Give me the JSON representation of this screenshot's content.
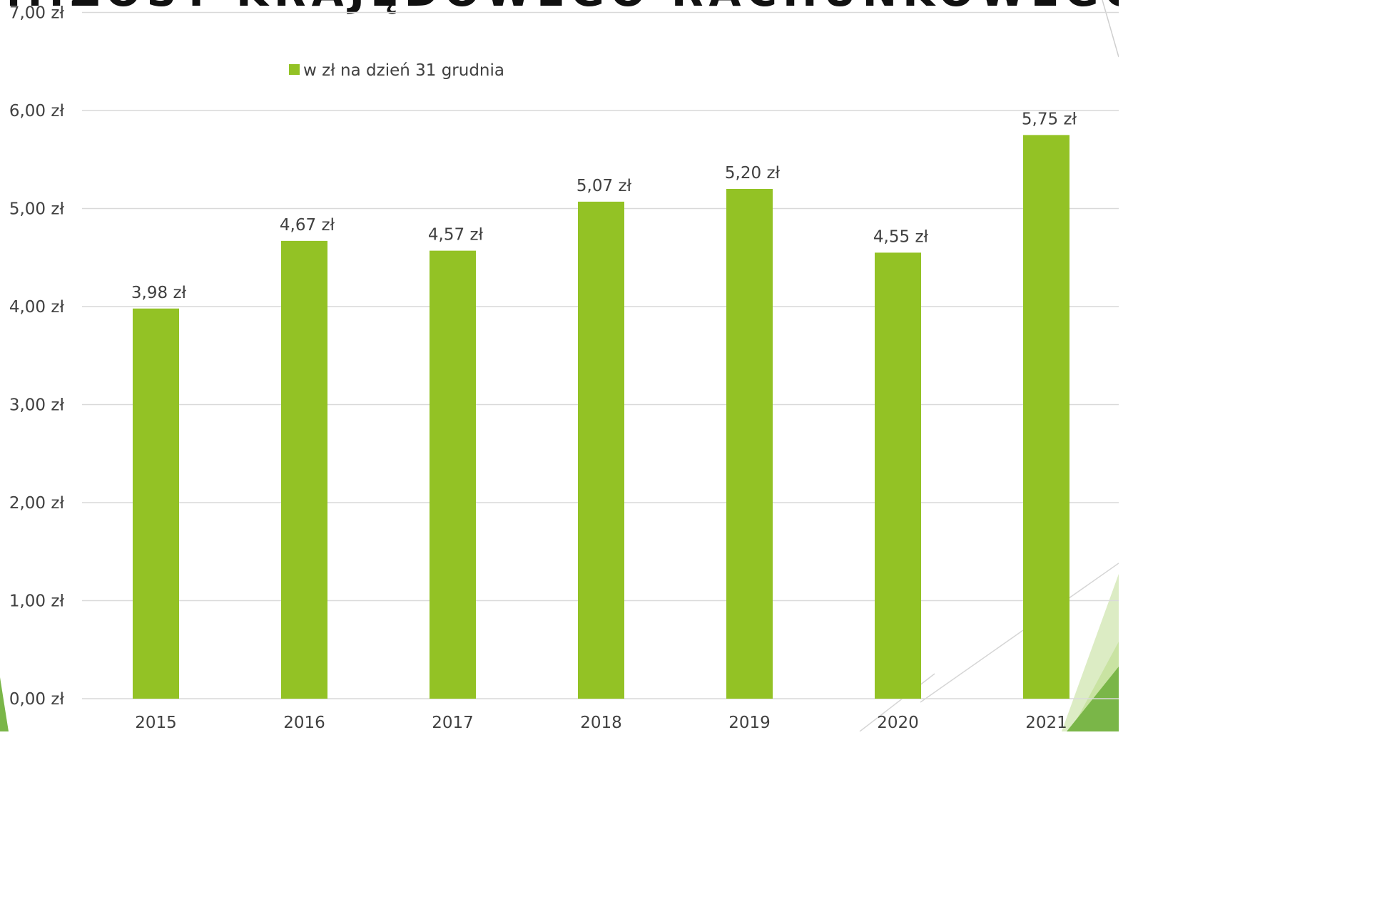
{
  "slide": {
    "title": "...ZOST KRAJĘDOWEGO RACHUNKOWEGO PRZY W POLSCE",
    "accent_color": "#93c225",
    "decor_colors": [
      "#7ab648",
      "#c9e3a2",
      "#dcecc4"
    ]
  },
  "chart_data": {
    "type": "bar",
    "categories": [
      "2015",
      "2016",
      "2017",
      "2018",
      "2019",
      "2020",
      "2021"
    ],
    "values": [
      3.98,
      4.67,
      4.57,
      5.07,
      5.2,
      4.55,
      5.75
    ],
    "data_labels": [
      "3,98 zł",
      "4,67 zł",
      "4,57 zł",
      "5,07 zł",
      "5,20 zł",
      "4,55 zł",
      "5,75 zł"
    ],
    "series": [
      {
        "name": "w zł na dzień 31 grudnia",
        "color": "#93c225"
      }
    ],
    "title": "",
    "xlabel": "",
    "ylabel": "",
    "ylim": [
      0,
      7
    ],
    "y_ticks": [
      0,
      1,
      2,
      3,
      4,
      5,
      6,
      7
    ],
    "y_tick_labels": [
      "0,00 zł",
      "1,00 zł",
      "2,00 zł",
      "3,00 zł",
      "4,00 zł",
      "5,00 zł",
      "6,00 zł",
      "7,00 zł"
    ],
    "gridlines": true,
    "gridline_color": "#d9d9d9",
    "legend_position": "top-left"
  }
}
